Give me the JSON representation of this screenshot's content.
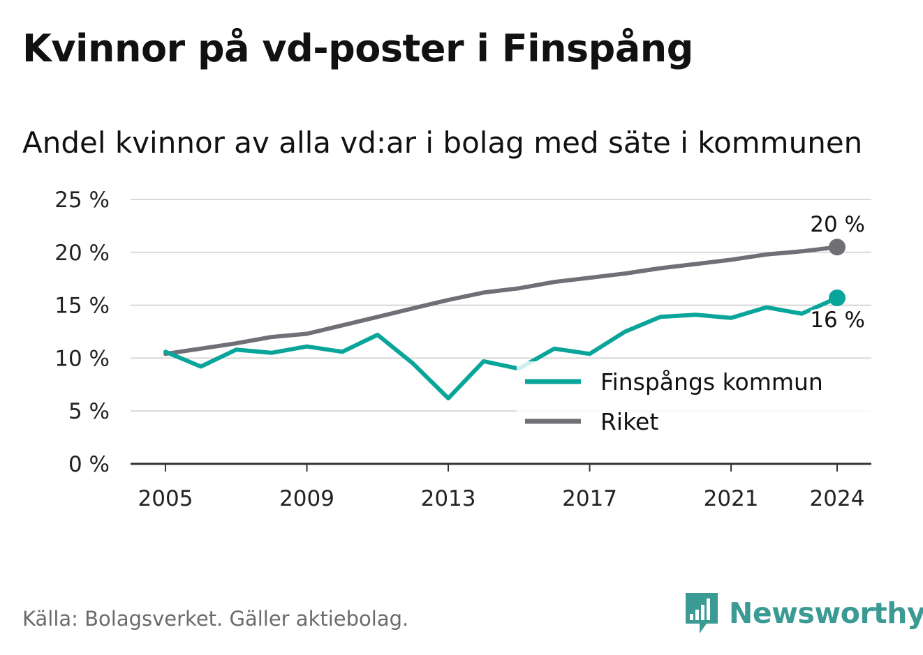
{
  "title": "Kvinnor på vd-poster i Finspång",
  "subtitle": "Andel kvinnor av alla vd:ar i bolag med säte i kommunen",
  "source": "Källa: Bolagsverket. Gäller aktiebolag.",
  "brand": "Newsworthy",
  "colors": {
    "finspang": "#0aa59a",
    "riket": "#6f6f76",
    "grid": "#d8d8d8",
    "axis": "#333333",
    "brand": "#3b9b94"
  },
  "chart_data": {
    "type": "line",
    "x": [
      2005,
      2006,
      2007,
      2008,
      2009,
      2010,
      2011,
      2012,
      2013,
      2014,
      2015,
      2016,
      2017,
      2018,
      2019,
      2020,
      2021,
      2022,
      2023,
      2024
    ],
    "series": [
      {
        "name": "Finspångs kommun",
        "color": "#0aa59a",
        "values": [
          10.6,
          9.2,
          10.8,
          10.5,
          11.1,
          10.6,
          12.2,
          9.5,
          6.2,
          9.7,
          9.0,
          10.9,
          10.4,
          12.5,
          13.9,
          14.1,
          13.8,
          14.8,
          14.2,
          15.7
        ]
      },
      {
        "name": "Riket",
        "color": "#6f6f76",
        "values": [
          10.4,
          10.9,
          11.4,
          12.0,
          12.3,
          13.1,
          13.9,
          14.7,
          15.5,
          16.2,
          16.6,
          17.2,
          17.6,
          18.0,
          18.5,
          18.9,
          19.3,
          19.8,
          20.1,
          20.5
        ]
      }
    ],
    "x_ticks": [
      "2005",
      "2009",
      "2013",
      "2017",
      "2021",
      "2024"
    ],
    "y_ticks": [
      "0 %",
      "5 %",
      "10 %",
      "15 %",
      "20 %",
      "25 %"
    ],
    "ylim": [
      0,
      25
    ],
    "end_labels": {
      "riket": "20 %",
      "finspang": "16 %"
    },
    "legend": {
      "placement": "bottom-right",
      "items": [
        "Finspångs kommun",
        "Riket"
      ]
    },
    "grid": true
  }
}
